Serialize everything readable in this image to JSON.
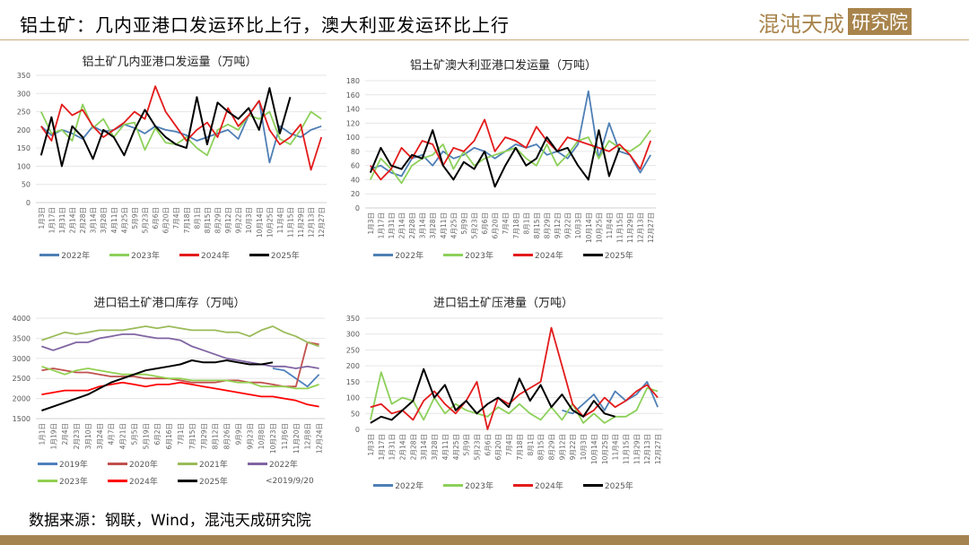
{
  "header": {
    "title": "铝土矿：几内亚港口发运环比上行，澳大利亚发运环比上行",
    "logo_text": "混沌天成",
    "logo_box": "研究院"
  },
  "footer": {
    "source": "数据来源：钢联，Wind，混沌天成研究院"
  },
  "chart_data": [
    {
      "type": "line",
      "title": "铝土矿几内亚港口发运量（万吨）",
      "ylim": [
        0,
        350
      ],
      "ystep": 50,
      "categories": [
        "1月3日",
        "1月17日",
        "1月31日",
        "2月14日",
        "2月28日",
        "3月14日",
        "3月28日",
        "4月11日",
        "4月25日",
        "5月9日",
        "5月23日",
        "6月6日",
        "6月20日",
        "7月4日",
        "7月18日",
        "8月1日",
        "8月15日",
        "8月29日",
        "9月12日",
        "9月22日",
        "10月3日",
        "10月14日",
        "10月25日",
        "11月4日",
        "11月15日",
        "11月29日",
        "12月13日",
        "12月27日"
      ],
      "series": [
        {
          "name": "2022年",
          "color": "#4e7fb5",
          "values": [
            210,
            185,
            200,
            190,
            175,
            210,
            195,
            200,
            215,
            205,
            190,
            210,
            200,
            195,
            185,
            170,
            180,
            190,
            200,
            175,
            240,
            280,
            110,
            210,
            190,
            180,
            200,
            210
          ]
        },
        {
          "name": "2023年",
          "color": "#8dd05a",
          "values": [
            250,
            190,
            200,
            170,
            270,
            205,
            230,
            180,
            215,
            220,
            145,
            205,
            165,
            160,
            180,
            150,
            130,
            200,
            215,
            200,
            240,
            230,
            250,
            175,
            160,
            200,
            250,
            230
          ]
        },
        {
          "name": "2024年",
          "color": "#e31b1b",
          "values": [
            210,
            170,
            270,
            240,
            255,
            210,
            180,
            200,
            220,
            250,
            230,
            320,
            250,
            210,
            170,
            200,
            220,
            180,
            260,
            210,
            240,
            280,
            200,
            160,
            180,
            215,
            90,
            180
          ]
        },
        {
          "name": "2025年",
          "color": "#000000",
          "values": [
            130,
            235,
            100,
            210,
            180,
            120,
            200,
            180,
            130,
            200,
            255,
            210,
            180,
            160,
            150,
            290,
            160,
            275,
            250,
            230,
            260,
            200,
            315,
            190,
            290,
            null,
            null,
            null
          ]
        }
      ]
    },
    {
      "type": "line",
      "title": "铝土矿澳大利亚港口发运量（万吨）",
      "ylim": [
        0,
        180
      ],
      "ystep": 20,
      "categories": [
        "1月3日",
        "1月17日",
        "1月31日",
        "2月14日",
        "2月28日",
        "3月14日",
        "3月28日",
        "4月11日",
        "4月25日",
        "5月9日",
        "5月23日",
        "6月6日",
        "6月20日",
        "7月4日",
        "7月18日",
        "8月1日",
        "8月15日",
        "8月29日",
        "9月12日",
        "9月22日",
        "10月3日",
        "10月14日",
        "10月25日",
        "11月4日",
        "11月15日",
        "11月29日",
        "12月13日",
        "12月27日"
      ],
      "series": [
        {
          "name": "2022年",
          "color": "#4e7fb5",
          "values": [
            55,
            60,
            50,
            45,
            70,
            75,
            60,
            80,
            70,
            75,
            85,
            80,
            70,
            80,
            90,
            85,
            90,
            75,
            80,
            70,
            90,
            165,
            70,
            120,
            80,
            75,
            50,
            75
          ]
        },
        {
          "name": "2023年",
          "color": "#8dd05a",
          "values": [
            40,
            70,
            55,
            35,
            60,
            70,
            75,
            90,
            55,
            80,
            60,
            70,
            75,
            80,
            85,
            70,
            60,
            90,
            60,
            75,
            95,
            100,
            70,
            95,
            85,
            80,
            90,
            110
          ]
        },
        {
          "name": "2024年",
          "color": "#e31b1b",
          "values": [
            60,
            40,
            55,
            85,
            70,
            95,
            90,
            60,
            85,
            80,
            95,
            125,
            80,
            100,
            95,
            85,
            115,
            95,
            80,
            100,
            95,
            90,
            85,
            80,
            90,
            75,
            55,
            95
          ]
        },
        {
          "name": "2025年",
          "color": "#000000",
          "values": [
            50,
            85,
            60,
            55,
            75,
            70,
            110,
            60,
            40,
            65,
            55,
            80,
            30,
            60,
            85,
            60,
            70,
            100,
            80,
            85,
            60,
            40,
            110,
            45,
            85,
            null,
            null,
            null
          ]
        }
      ]
    },
    {
      "type": "line",
      "title": "进口铝土矿港口库存（万吨）",
      "ylim": [
        1500,
        4000
      ],
      "ystep": 500,
      "note": "<2019/9/20",
      "categories": [
        "1月1日",
        "1月19日",
        "2月4日",
        "2月23日",
        "3月10日",
        "3月24日",
        "4月7日",
        "4月21日",
        "5月5日",
        "5月19日",
        "6月2日",
        "6月16日",
        "7月1日",
        "7月15日",
        "7月29日",
        "8月12日",
        "8月26日",
        "9月9日",
        "9月23日",
        "10月8日",
        "10月23日",
        "11月6日",
        "11月20日",
        "12月8日",
        "12月24日"
      ],
      "series": [
        {
          "name": "2019年",
          "color": "#4f81bd",
          "values": [
            null,
            null,
            null,
            null,
            null,
            null,
            null,
            null,
            null,
            null,
            null,
            null,
            null,
            null,
            null,
            null,
            null,
            null,
            null,
            null,
            2750,
            2700,
            2500,
            2300,
            2600
          ]
        },
        {
          "name": "2020年",
          "color": "#c0504d",
          "values": [
            2700,
            2750,
            2700,
            2650,
            2650,
            2600,
            2550,
            2550,
            2550,
            2500,
            2500,
            2500,
            2450,
            2400,
            2400,
            2400,
            2450,
            2450,
            2400,
            2400,
            2350,
            2300,
            2300,
            3400,
            3350
          ]
        },
        {
          "name": "2021年",
          "color": "#9bbb59",
          "values": [
            3450,
            3550,
            3650,
            3600,
            3650,
            3700,
            3700,
            3700,
            3750,
            3800,
            3750,
            3800,
            3750,
            3700,
            3700,
            3700,
            3650,
            3650,
            3550,
            3700,
            3800,
            3650,
            3550,
            3400,
            3300
          ]
        },
        {
          "name": "2022年",
          "color": "#8064a2",
          "values": [
            3300,
            3200,
            3300,
            3400,
            3400,
            3500,
            3550,
            3600,
            3600,
            3550,
            3500,
            3500,
            3450,
            3300,
            3200,
            3100,
            3000,
            2950,
            2900,
            2850,
            2800,
            2800,
            2750,
            2800,
            2750
          ]
        },
        {
          "name": "2023年",
          "color": "#92d050",
          "values": [
            2800,
            2700,
            2600,
            2700,
            2750,
            2700,
            2650,
            2600,
            2600,
            2600,
            2550,
            2500,
            2500,
            2450,
            2450,
            2450,
            2450,
            2400,
            2400,
            2300,
            2300,
            2300,
            2250,
            2250,
            2350
          ]
        },
        {
          "name": "2024年",
          "color": "#ff0000",
          "values": [
            2100,
            2150,
            2200,
            2200,
            2200,
            2300,
            2350,
            2400,
            2350,
            2300,
            2350,
            2350,
            2400,
            2350,
            2300,
            2250,
            2200,
            2150,
            2100,
            2050,
            2050,
            2000,
            1950,
            1850,
            1800
          ]
        },
        {
          "name": "2025年",
          "color": "#000000",
          "values": [
            1700,
            1800,
            1900,
            2000,
            2100,
            2250,
            2400,
            2500,
            2600,
            2700,
            2750,
            2800,
            2850,
            2950,
            2900,
            2900,
            2950,
            2900,
            2850,
            2850,
            2900,
            null,
            null,
            null,
            null
          ]
        }
      ]
    },
    {
      "type": "line",
      "title": "进口铝土矿压港量（万吨）",
      "ylim": [
        0,
        350
      ],
      "ystep": 50,
      "categories": [
        "1月3日",
        "1月17日",
        "1月31日",
        "2月14日",
        "2月28日",
        "3月14日",
        "3月28日",
        "4月11日",
        "4月25日",
        "5月9日",
        "5月23日",
        "6月6日",
        "6月20日",
        "7月4日",
        "7月18日",
        "8月1日",
        "8月15日",
        "8月29日",
        "9月12日",
        "9月22日",
        "10月3日",
        "10月14日",
        "10月25日",
        "11月4日",
        "11月15日",
        "11月29日",
        "12月13日",
        "12月27日"
      ],
      "series": [
        {
          "name": "2022年",
          "color": "#4e7fb5",
          "values": [
            null,
            null,
            null,
            null,
            null,
            null,
            null,
            null,
            null,
            null,
            null,
            null,
            null,
            null,
            null,
            null,
            null,
            null,
            60,
            50,
            80,
            110,
            60,
            120,
            90,
            110,
            150,
            70
          ]
        },
        {
          "name": "2023年",
          "color": "#8dd05a",
          "values": [
            30,
            180,
            80,
            100,
            90,
            30,
            100,
            50,
            80,
            60,
            50,
            40,
            70,
            50,
            80,
            50,
            30,
            70,
            30,
            80,
            20,
            50,
            20,
            40,
            40,
            60,
            130,
            120
          ]
        },
        {
          "name": "2024年",
          "color": "#e31b1b",
          "values": [
            70,
            80,
            50,
            60,
            30,
            90,
            120,
            80,
            50,
            90,
            150,
            0,
            100,
            80,
            110,
            130,
            150,
            320,
            200,
            80,
            40,
            60,
            100,
            70,
            90,
            120,
            140,
            100
          ]
        },
        {
          "name": "2025年",
          "color": "#000000",
          "values": [
            20,
            40,
            30,
            60,
            90,
            190,
            100,
            140,
            60,
            90,
            50,
            80,
            100,
            70,
            160,
            90,
            140,
            70,
            110,
            60,
            40,
            90,
            50,
            40,
            null,
            null,
            null,
            null
          ]
        }
      ]
    }
  ]
}
